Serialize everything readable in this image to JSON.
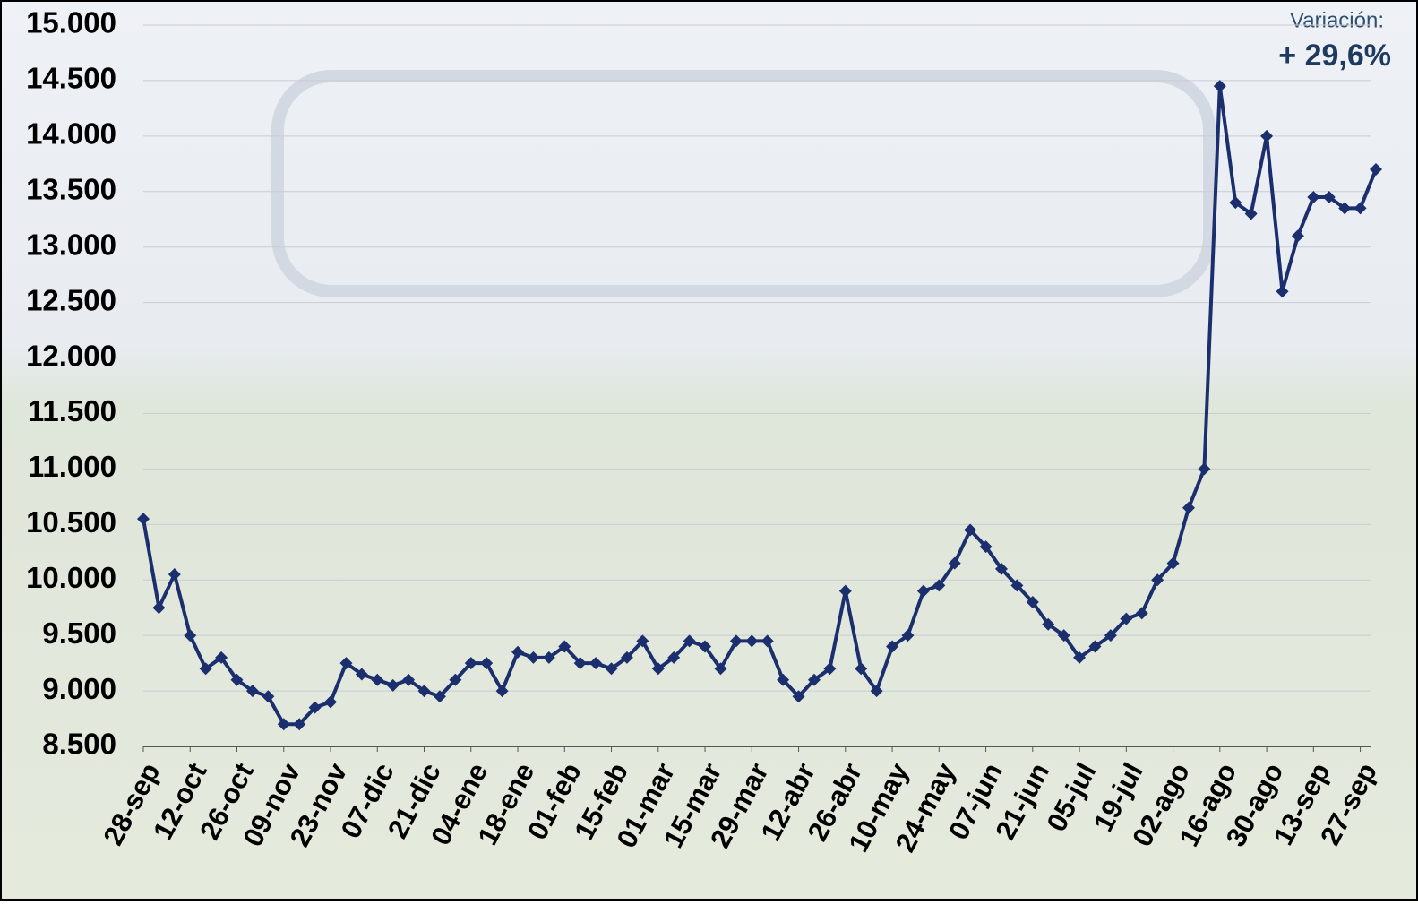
{
  "chart_data": {
    "type": "line",
    "annotation_label": "Variación:",
    "annotation_value": "+ 29,6%",
    "color": "#1b2f6e",
    "grid": true,
    "ylim": [
      8500,
      15000
    ],
    "yticks": [
      {
        "value": 8500,
        "label": "8.500"
      },
      {
        "value": 9000,
        "label": "9.000"
      },
      {
        "value": 9500,
        "label": "9.500"
      },
      {
        "value": 10000,
        "label": "10.000"
      },
      {
        "value": 10500,
        "label": "10.500"
      },
      {
        "value": 11000,
        "label": "11.000"
      },
      {
        "value": 11500,
        "label": "11.500"
      },
      {
        "value": 12000,
        "label": "12.000"
      },
      {
        "value": 12500,
        "label": "12.500"
      },
      {
        "value": 13000,
        "label": "13.000"
      },
      {
        "value": 13500,
        "label": "13.500"
      },
      {
        "value": 14000,
        "label": "14.000"
      },
      {
        "value": 14500,
        "label": "14.500"
      },
      {
        "value": 15000,
        "label": "15.000"
      }
    ],
    "categories": [
      "28-sep",
      null,
      null,
      "12-oct",
      null,
      null,
      "26-oct",
      null,
      null,
      "09-nov",
      null,
      null,
      "23-nov",
      null,
      null,
      "07-dic",
      null,
      null,
      "21-dic",
      null,
      null,
      "04-ene",
      null,
      null,
      "18-ene",
      null,
      null,
      "01-feb",
      null,
      null,
      "15-feb",
      null,
      null,
      "01-mar",
      null,
      null,
      "15-mar",
      null,
      null,
      "29-mar",
      null,
      null,
      "12-abr",
      null,
      null,
      "26-abr",
      null,
      null,
      "10-may",
      null,
      null,
      "24-may",
      null,
      null,
      "07-jun",
      null,
      null,
      "21-jun",
      null,
      null,
      "05-jul",
      null,
      null,
      "19-jul",
      null,
      null,
      "02-ago",
      null,
      null,
      "16-ago",
      null,
      null,
      "30-ago",
      null,
      null,
      "13-sep",
      null,
      null,
      "27-sep",
      null
    ],
    "values": [
      10550,
      9750,
      10050,
      9500,
      9200,
      9300,
      9100,
      9000,
      8950,
      8700,
      8700,
      8850,
      8900,
      9250,
      9150,
      9100,
      9050,
      9100,
      9000,
      8950,
      9100,
      9250,
      9250,
      9000,
      9350,
      9300,
      9300,
      9400,
      9250,
      9250,
      9200,
      9300,
      9450,
      9200,
      9300,
      9450,
      9400,
      9200,
      9450,
      9450,
      9450,
      9100,
      8950,
      9100,
      9200,
      9900,
      9200,
      9000,
      9400,
      9500,
      9900,
      9950,
      10150,
      10450,
      10300,
      10100,
      9950,
      9800,
      9600,
      9500,
      9300,
      9400,
      9500,
      9650,
      9700,
      10000,
      10150,
      10650,
      11000,
      14450,
      13400,
      13300,
      14000,
      12600,
      13100,
      13450,
      13450,
      13350,
      13350,
      13700
    ]
  }
}
